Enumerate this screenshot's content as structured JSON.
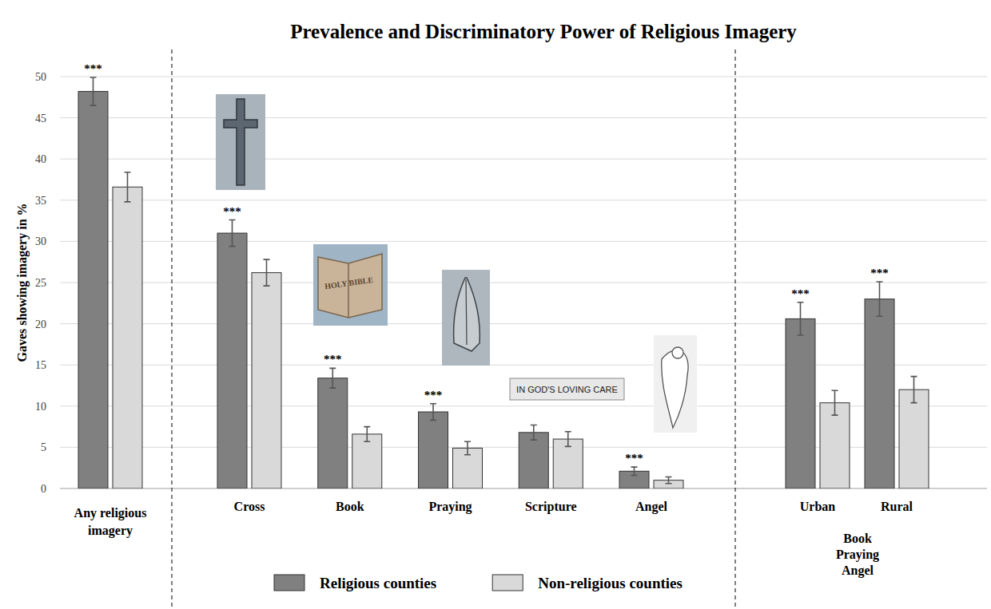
{
  "chart_data": {
    "type": "bar",
    "title": "Prevalence and Discriminatory Power of Religious Imagery",
    "y_label": "Gaves showing imagery in %",
    "categories": [
      "Any religious imagery",
      "Cross",
      "Book",
      "Praying",
      "Scripture",
      "Angel",
      "Urban",
      "Rural"
    ],
    "series": [
      {
        "name": "Religious counties",
        "color": "#808080",
        "values": [
          48.2,
          31.0,
          13.4,
          9.3,
          6.8,
          2.1,
          20.6,
          23.0
        ],
        "errors": [
          1.7,
          1.6,
          1.2,
          1.0,
          0.9,
          0.5,
          2.0,
          2.1
        ],
        "significance": [
          "***",
          "***",
          "***",
          "***",
          null,
          "***",
          "***",
          "***"
        ]
      },
      {
        "name": "Non-religious counties",
        "color": "#d9d9d9",
        "values": [
          36.6,
          26.2,
          6.6,
          4.9,
          6.0,
          1.0,
          10.4,
          12.0
        ],
        "errors": [
          1.8,
          1.6,
          0.9,
          0.8,
          0.9,
          0.4,
          1.5,
          1.6
        ]
      }
    ],
    "annotations": [
      "HOLY BIBLE",
      "IN GOD'S LOVING CARE",
      "Book Praying Angel"
    ],
    "ylim": [
      0,
      50
    ],
    "yticks": [
      0,
      5,
      10,
      15,
      20,
      25,
      30,
      35,
      40,
      45,
      50
    ],
    "grid": true,
    "legend": "bottom"
  }
}
